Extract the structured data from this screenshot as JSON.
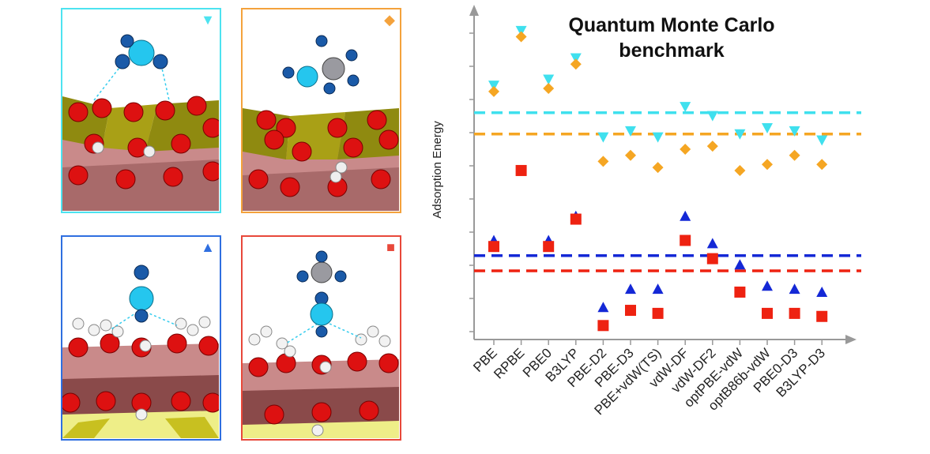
{
  "panels": [
    {
      "id": "panel-cyan",
      "marker": "▼",
      "color": "#4de3f0",
      "molecule": "NH2-like adsorbate on oxide surface"
    },
    {
      "id": "panel-orange",
      "marker": "◆",
      "color": "#f4a23c",
      "molecule": "CH3 adsorbate on oxide surface"
    },
    {
      "id": "panel-blue",
      "marker": "▲",
      "color": "#2f6fe0",
      "molecule": "N2-like adsorbate on hydroxylated surface"
    },
    {
      "id": "panel-red",
      "marker": "■",
      "color": "#e8483a",
      "molecule": "CH3-N adsorbate on hydroxylated surface"
    }
  ],
  "chart_data": {
    "type": "scatter",
    "title": [
      "Quantum Monte Carlo",
      "benchmark"
    ],
    "xlabel": "",
    "ylabel": "Adsorption Energy",
    "categories": [
      "PBE",
      "RPBE",
      "PBE0",
      "B3LYP",
      "PBE-D2",
      "PBE-D3",
      "PBE+vdW(TS)",
      "vdW-DF",
      "vdW-DF2",
      "optPBE-vdW",
      "optB86b-vdW",
      "PBE0-D3",
      "B3LYP-D3"
    ],
    "ylim": [
      0,
      100
    ],
    "series": [
      {
        "name": "cyan-triangle-down",
        "marker": "triangle-down",
        "color": "#3fe0ee",
        "values": [
          81,
          99,
          83,
          90,
          64,
          66,
          64,
          74,
          71,
          65,
          67,
          66,
          63
        ]
      },
      {
        "name": "orange-diamond",
        "marker": "diamond",
        "color": "#f5a623",
        "values": [
          79,
          97,
          80,
          88,
          56,
          58,
          54,
          60,
          61,
          53,
          55,
          58,
          55
        ]
      },
      {
        "name": "blue-triangle-up",
        "marker": "triangle-up",
        "color": "#1428d6",
        "values": [
          30,
          null,
          30,
          38,
          8,
          14,
          14,
          38,
          29,
          22,
          15,
          14,
          13
        ]
      },
      {
        "name": "red-square",
        "marker": "square",
        "color": "#ee2211",
        "values": [
          28,
          53,
          28,
          37,
          2,
          7,
          6,
          30,
          24,
          13,
          6,
          6,
          5
        ]
      }
    ],
    "reference_lines": [
      {
        "name": "cyan-qmc-line",
        "color": "#3fe0ee",
        "value": 72
      },
      {
        "name": "orange-qmc-line",
        "color": "#f5a623",
        "value": 65
      },
      {
        "name": "blue-qmc-line",
        "color": "#1428d6",
        "value": 25
      },
      {
        "name": "red-qmc-line",
        "color": "#ee2211",
        "value": 20
      }
    ]
  }
}
